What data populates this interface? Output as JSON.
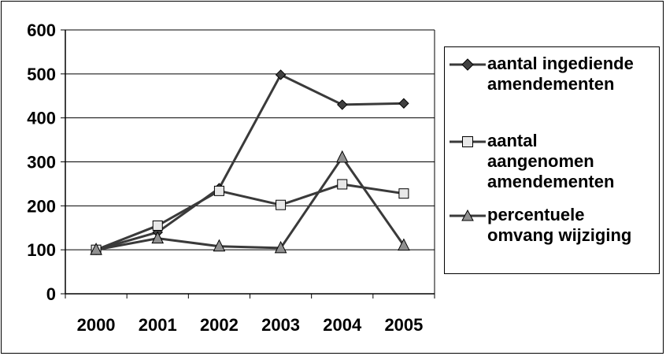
{
  "chart_data": {
    "type": "line",
    "categories": [
      "2000",
      "2001",
      "2002",
      "2003",
      "2004",
      "2005"
    ],
    "ylim": [
      0,
      600
    ],
    "yticks": [
      "0",
      "100",
      "200",
      "300",
      "400",
      "500",
      "600"
    ],
    "grid": true,
    "legend_position": "right",
    "series": [
      {
        "name": "aantal ingediende amendementen",
        "values": [
          100,
          140,
          240,
          498,
          430,
          433
        ],
        "marker": "diamond",
        "marker_color": "#404040"
      },
      {
        "name": "aantal aangenomen amendementen",
        "values": [
          100,
          155,
          234,
          202,
          249,
          228
        ],
        "marker": "square",
        "marker_color": "#e8e8e8"
      },
      {
        "name": "percentuele omvang wijziging",
        "values": [
          100,
          126,
          108,
          104,
          310,
          110
        ],
        "marker": "triangle",
        "marker_color": "#909090"
      }
    ],
    "line_color": "#3a3a3a"
  },
  "legend": {
    "item1_label": "aantal ingediende\namendementen",
    "item2_label": "aantal\naangenomen\namendementen",
    "item3_label": "percentuele\nomvang wijziging"
  }
}
